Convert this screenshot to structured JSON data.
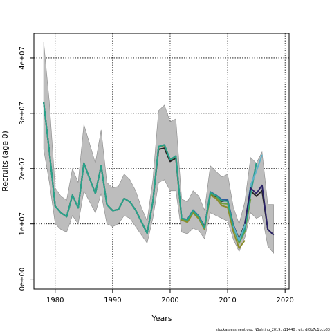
{
  "chart_data": {
    "type": "line",
    "title": "",
    "xlabel": "Years",
    "ylabel": "Recruits (age 0)",
    "xlim": [
      1976.3,
      2020.7
    ],
    "ylim": [
      -1800000,
      44500000
    ],
    "x_ticks": [
      1980,
      1990,
      2000,
      2010,
      2020
    ],
    "x_tick_labels": [
      "1980",
      "1990",
      "2000",
      "2010",
      "2020"
    ],
    "y_ticks": [
      0,
      10000000,
      20000000,
      30000000,
      40000000
    ],
    "y_tick_labels": [
      "0e+00",
      "1e+07",
      "2e+07",
      "3e+07",
      "4e+07"
    ],
    "grid": true,
    "footer": "stockassessment.org, NSshting_2019, r11440 , git: df0b7c1bcb83",
    "band": {
      "color": "#bdbdbd",
      "x": [
        1978,
        1979,
        1980,
        1981,
        1982,
        1983,
        1984,
        1985,
        1986,
        1987,
        1988,
        1989,
        1990,
        1991,
        1992,
        1993,
        1994,
        1995,
        1996,
        1997,
        1998,
        1999,
        2000,
        2001,
        2002,
        2003,
        2004,
        2005,
        2006,
        2007,
        2008,
        2009,
        2010,
        2011,
        2012,
        2013,
        2014,
        2015,
        2016,
        2017,
        2018
      ],
      "upper": [
        43000000,
        32000000,
        16500000,
        15000000,
        14300000,
        20000000,
        17500000,
        28000000,
        24500000,
        21000000,
        27000000,
        17500000,
        16500000,
        16800000,
        19000000,
        18000000,
        16000000,
        13000000,
        10500000,
        18000000,
        30500000,
        31500000,
        28500000,
        29000000,
        14500000,
        14000000,
        16000000,
        15000000,
        12500000,
        20500000,
        19500000,
        18500000,
        19000000,
        13000000,
        10000000,
        14000000,
        22000000,
        21000000,
        23000000,
        13500000,
        13500000
      ],
      "lower": [
        23500000,
        17500000,
        10000000,
        9000000,
        8500000,
        11500000,
        10000000,
        16000000,
        14000000,
        12000000,
        15500000,
        10000000,
        9500000,
        10000000,
        11500000,
        11000000,
        9500000,
        8000000,
        6500000,
        11000000,
        17500000,
        18000000,
        16000000,
        16000000,
        8500000,
        8200000,
        9200000,
        8800000,
        7300000,
        12000000,
        11500000,
        11000000,
        10500000,
        7200000,
        5000000,
        7500000,
        12000000,
        11000000,
        11500000,
        6000000,
        4700000
      ]
    },
    "series": [
      {
        "color": "#232323",
        "x": [
          1978,
          1979,
          1980,
          1981,
          1982,
          1983,
          1984,
          1985,
          1986,
          1987,
          1988,
          1989,
          1990,
          1991,
          1992,
          1993,
          1994,
          1995,
          1996,
          1997,
          1998,
          1999,
          2000,
          2001,
          2002,
          2003,
          2004,
          2005,
          2006,
          2007,
          2008,
          2009,
          2010,
          2011,
          2012,
          2013,
          2014,
          2015,
          2016,
          2017,
          2018
        ],
        "values": [
          32000000,
          23000000,
          13200000,
          12000000,
          11300000,
          15200000,
          12900000,
          21000000,
          18200000,
          15500000,
          20500000,
          13500000,
          12400000,
          12600000,
          14600000,
          14000000,
          12500000,
          10400000,
          8300000,
          14000000,
          23500000,
          23700000,
          21300000,
          21900000,
          11000000,
          10700000,
          12400000,
          11300000,
          9500000,
          15500000,
          14900000,
          14100000,
          14200000,
          9800000,
          7200000,
          10000000,
          16000000,
          15000000,
          16000000,
          9000000,
          8000000
        ]
      },
      {
        "color": "#8c8c2a",
        "x": [
          1978,
          1979,
          1980,
          1981,
          1982,
          1983,
          1984,
          1985,
          1986,
          1987,
          1988,
          1989,
          1990,
          1991,
          1992,
          1993,
          1994,
          1995,
          1996,
          1997,
          1998,
          1999,
          2000,
          2001,
          2002,
          2003,
          2004,
          2005,
          2006,
          2007,
          2008,
          2009,
          2010,
          2011,
          2012,
          2013
        ],
        "values": [
          32000000,
          23000000,
          13200000,
          12000000,
          11300000,
          15200000,
          12900000,
          21000000,
          18200000,
          15500000,
          20500000,
          13500000,
          12400000,
          12600000,
          14600000,
          14000000,
          12500000,
          10400000,
          8300000,
          14000000,
          23900000,
          24200000,
          21600000,
          22200000,
          10700000,
          10300000,
          12000000,
          10900000,
          9000000,
          15200000,
          14600000,
          13300000,
          13000000,
          8600000,
          5600000,
          7000000
        ]
      },
      {
        "color": "#6b9d43",
        "x": [
          1978,
          1979,
          1980,
          1981,
          1982,
          1983,
          1984,
          1985,
          1986,
          1987,
          1988,
          1989,
          1990,
          1991,
          1992,
          1993,
          1994,
          1995,
          1996,
          1997,
          1998,
          1999,
          2000,
          2001,
          2002,
          2003,
          2004,
          2005,
          2006,
          2007,
          2008,
          2009,
          2010,
          2011,
          2012,
          2013,
          2014
        ],
        "values": [
          32000000,
          23000000,
          13200000,
          12000000,
          11300000,
          15200000,
          12900000,
          21000000,
          18200000,
          15500000,
          20500000,
          13500000,
          12400000,
          12600000,
          14600000,
          14000000,
          12500000,
          10400000,
          8300000,
          14000000,
          24000000,
          24300000,
          21600000,
          22300000,
          10900000,
          10600000,
          12300000,
          11200000,
          9200000,
          15500000,
          15000000,
          13700000,
          13600000,
          9400000,
          6500000,
          8600000,
          14500000
        ]
      },
      {
        "color": "#2d5c9e",
        "x": [
          1978,
          1979,
          1980,
          1981,
          1982,
          1983,
          1984,
          1985,
          1986,
          1987,
          1988,
          1989,
          1990,
          1991,
          1992,
          1993,
          1994,
          1995,
          1996,
          1997,
          1998,
          1999,
          2000,
          2001,
          2002,
          2003,
          2004,
          2005,
          2006,
          2007,
          2008,
          2009,
          2010,
          2011,
          2012,
          2013,
          2014,
          2015
        ],
        "values": [
          32000000,
          23000000,
          13200000,
          12000000,
          11300000,
          15200000,
          12900000,
          21000000,
          18200000,
          15500000,
          20500000,
          13500000,
          12400000,
          12600000,
          14600000,
          14000000,
          12500000,
          10400000,
          8300000,
          14000000,
          24000000,
          24300000,
          21600000,
          22300000,
          11000000,
          10800000,
          12500000,
          11400000,
          9400000,
          15800000,
          15200000,
          14400000,
          14400000,
          9800000,
          7000000,
          9300000,
          15500000,
          21000000
        ]
      },
      {
        "color": "#29a38a",
        "x": [
          1978,
          1979,
          1980,
          1981,
          1982,
          1983,
          1984,
          1985,
          1986,
          1987,
          1988,
          1989,
          1990,
          1991,
          1992,
          1993,
          1994,
          1995,
          1996,
          1997,
          1998,
          1999,
          2000,
          2001,
          2002,
          2003,
          2004,
          2005,
          2006,
          2007,
          2008,
          2009,
          2010,
          2011,
          2012,
          2013,
          2014,
          2015
        ],
        "values": [
          32000000,
          23000000,
          13200000,
          12000000,
          11300000,
          15200000,
          12900000,
          21000000,
          18200000,
          15500000,
          20500000,
          13500000,
          12400000,
          12600000,
          14600000,
          14000000,
          12500000,
          10400000,
          8300000,
          14000000,
          24000000,
          24300000,
          21600000,
          22300000,
          11000000,
          10700000,
          12400000,
          11300000,
          9300000,
          15700000,
          15100000,
          14200000,
          14100000,
          9500000,
          6800000,
          9000000,
          15300000,
          21000000
        ]
      },
      {
        "color": "#5fb3c9",
        "x": [
          2011,
          2012,
          2013,
          2014,
          2015,
          2016
        ],
        "values": [
          9600000,
          7000000,
          9800000,
          17000000,
          19500000,
          22500000
        ]
      },
      {
        "color": "#2a2266",
        "x": [
          2013,
          2014,
          2015,
          2016,
          2017,
          2018
        ],
        "values": [
          10000000,
          16500000,
          15500000,
          17000000,
          9000000,
          8000000
        ]
      }
    ]
  }
}
